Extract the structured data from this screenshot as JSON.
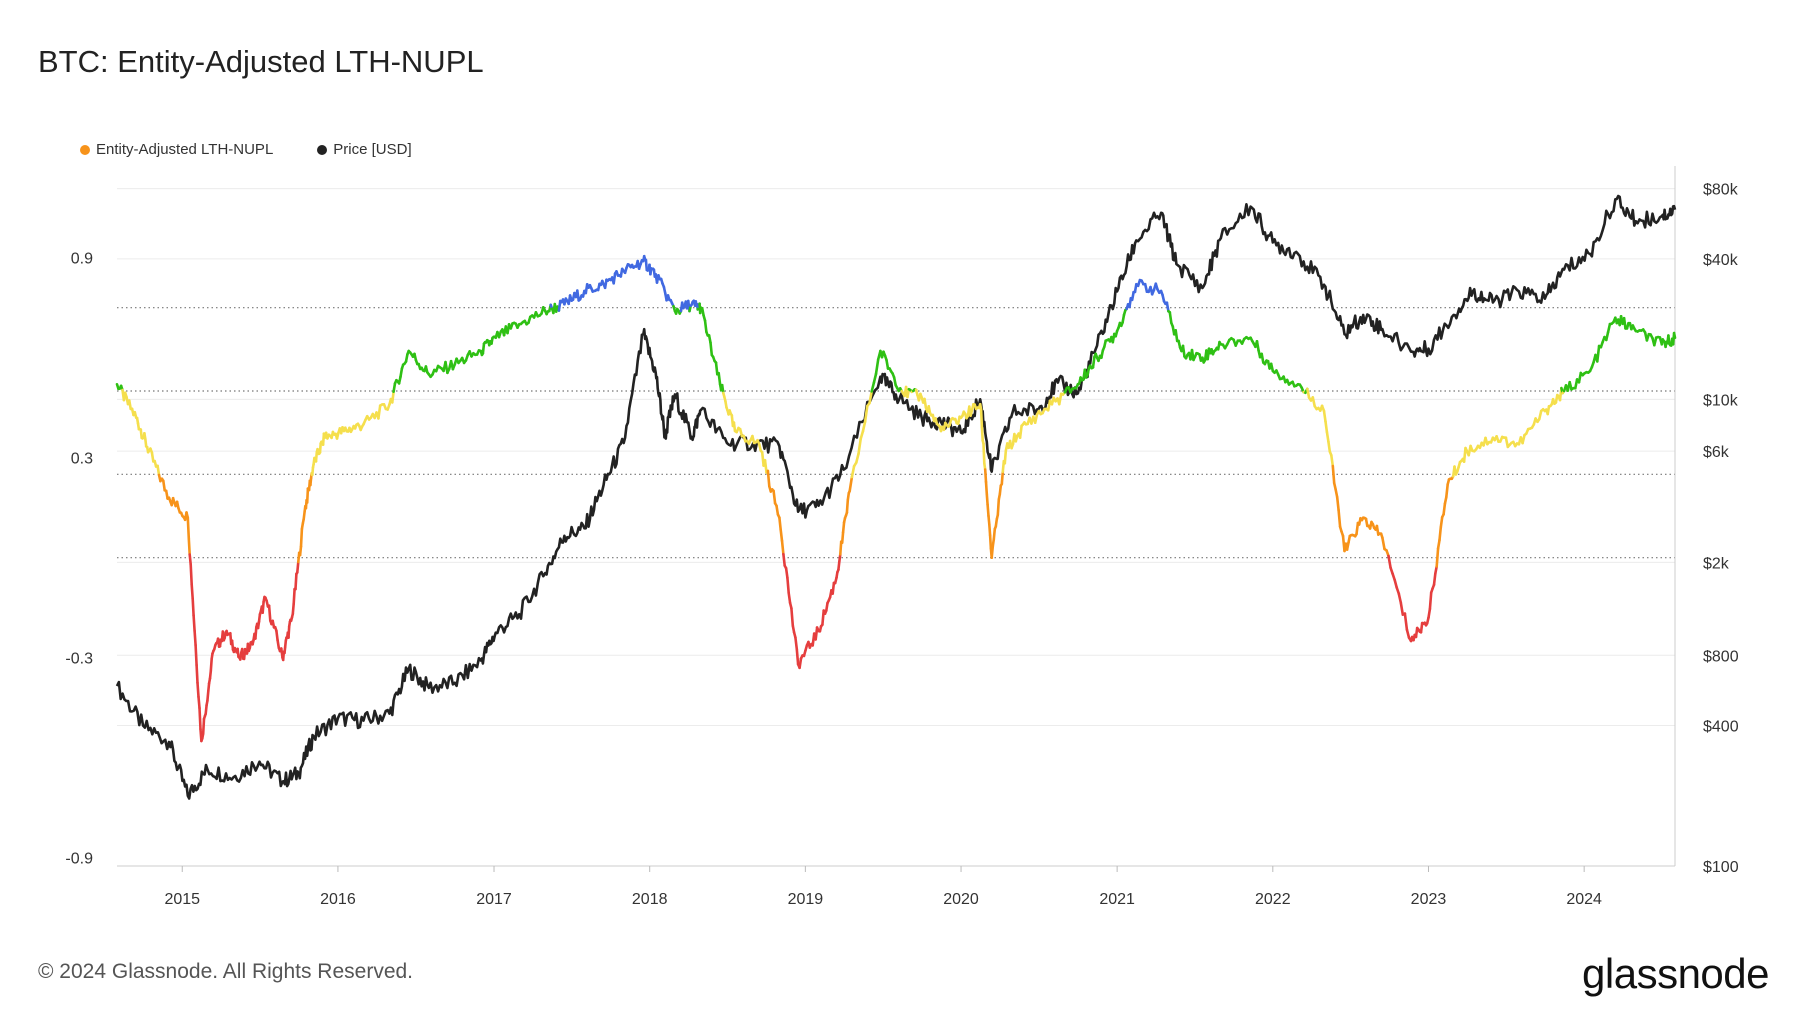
{
  "title": "BTC: Entity-Adjusted LTH-NUPL",
  "footer": "© 2024 Glassnode. All Rights Reserved.",
  "brand": "glassnode",
  "legend": [
    {
      "label": "Entity-Adjusted LTH-NUPL",
      "color": "#f7931a"
    },
    {
      "label": "Price [USD]",
      "color": "#222222"
    }
  ],
  "chart_data": {
    "type": "line",
    "x_range": [
      "2014-08-01",
      "2024-08-01"
    ],
    "x_ticks": [
      "2015",
      "2016",
      "2017",
      "2018",
      "2019",
      "2020",
      "2021",
      "2022",
      "2023",
      "2024"
    ],
    "y_left": {
      "ticks": [
        {
          "value": 0.9,
          "label": "0.9"
        },
        {
          "value": 0.3,
          "label": "0.3"
        },
        {
          "value": -0.3,
          "label": "-0.3"
        },
        {
          "value": -0.9,
          "label": "-0.9"
        }
      ],
      "range": [
        -0.925,
        1.175
      ]
    },
    "y_right": {
      "scale": "log",
      "range": [
        100,
        100000
      ],
      "ticks": [
        {
          "value": 80000,
          "label": "$80k"
        },
        {
          "value": 40000,
          "label": "$40k"
        },
        {
          "value": 10000,
          "label": "$10k"
        },
        {
          "value": 6000,
          "label": "$6k"
        },
        {
          "value": 2000,
          "label": "$2k"
        },
        {
          "value": 800,
          "label": "$800"
        },
        {
          "value": 400,
          "label": "$400"
        },
        {
          "value": 100,
          "label": "$100"
        }
      ]
    },
    "thresholds": [
      0.75,
      0.5,
      0.25,
      0.0
    ],
    "zone_colors": {
      "capitulation": "#e53e3e",
      "hope_fear": "#f7931a",
      "optimism_anxiety": "#f5df4d",
      "belief_denial": "#2fc014",
      "euphoria_greed": "#4169e1"
    },
    "series": [
      {
        "name": "Entity-Adjusted LTH-NUPL",
        "x": [
          "2014-08-01",
          "2014-09-15",
          "2014-10-15",
          "2014-12-01",
          "2015-01-14",
          "2015-02-15",
          "2015-03-15",
          "2015-04-15",
          "2015-05-15",
          "2015-06-15",
          "2015-07-15",
          "2015-08-24",
          "2015-09-15",
          "2015-10-15",
          "2015-11-05",
          "2015-12-01",
          "2016-01-15",
          "2016-03-01",
          "2016-05-01",
          "2016-06-15",
          "2016-08-01",
          "2016-10-01",
          "2016-12-01",
          "2017-01-05",
          "2017-03-01",
          "2017-05-01",
          "2017-06-15",
          "2017-08-01",
          "2017-09-15",
          "2017-11-01",
          "2017-12-17",
          "2018-01-15",
          "2018-03-01",
          "2018-04-10",
          "2018-05-01",
          "2018-06-15",
          "2018-07-20",
          "2018-09-15",
          "2018-11-01",
          "2018-12-15",
          "2019-02-01",
          "2019-03-15",
          "2019-04-15",
          "2019-06-26",
          "2019-08-15",
          "2019-10-01",
          "2019-11-15",
          "2020-01-01",
          "2020-02-15",
          "2020-03-13",
          "2020-04-15",
          "2020-06-01",
          "2020-08-01",
          "2020-10-01",
          "2020-11-15",
          "2021-01-01",
          "2021-02-15",
          "2021-04-14",
          "2021-06-01",
          "2021-07-20",
          "2021-09-01",
          "2021-11-10",
          "2022-01-01",
          "2022-03-01",
          "2022-05-01",
          "2022-06-18",
          "2022-08-01",
          "2022-09-15",
          "2022-11-21",
          "2023-01-01",
          "2023-02-15",
          "2023-04-01",
          "2023-06-01",
          "2023-08-01",
          "2023-10-01",
          "2023-11-15",
          "2024-01-15",
          "2024-03-14",
          "2024-05-01",
          "2024-07-01",
          "2024-08-01"
        ],
        "values": [
          0.52,
          0.42,
          0.32,
          0.18,
          0.12,
          -0.55,
          -0.28,
          -0.22,
          -0.3,
          -0.26,
          -0.12,
          -0.3,
          -0.18,
          0.14,
          0.28,
          0.36,
          0.38,
          0.4,
          0.46,
          0.62,
          0.55,
          0.58,
          0.62,
          0.66,
          0.7,
          0.74,
          0.76,
          0.8,
          0.82,
          0.86,
          0.89,
          0.85,
          0.74,
          0.76,
          0.75,
          0.52,
          0.38,
          0.34,
          0.12,
          -0.32,
          -0.22,
          -0.06,
          0.2,
          0.62,
          0.5,
          0.48,
          0.38,
          0.42,
          0.46,
          0.0,
          0.32,
          0.4,
          0.46,
          0.52,
          0.6,
          0.68,
          0.82,
          0.8,
          0.62,
          0.6,
          0.64,
          0.66,
          0.56,
          0.52,
          0.44,
          0.02,
          0.12,
          0.06,
          -0.25,
          -0.18,
          0.22,
          0.32,
          0.36,
          0.34,
          0.44,
          0.5,
          0.56,
          0.72,
          0.68,
          0.64,
          0.66
        ]
      },
      {
        "name": "Price [USD]",
        "x": [
          "2014-08-01",
          "2014-10-01",
          "2014-12-01",
          "2015-01-14",
          "2015-03-01",
          "2015-05-01",
          "2015-07-01",
          "2015-08-24",
          "2015-10-01",
          "2015-11-05",
          "2016-01-01",
          "2016-03-01",
          "2016-05-01",
          "2016-06-15",
          "2016-08-01",
          "2016-10-01",
          "2016-12-01",
          "2017-01-05",
          "2017-03-01",
          "2017-05-01",
          "2017-06-15",
          "2017-08-01",
          "2017-09-15",
          "2017-11-01",
          "2017-12-17",
          "2018-01-15",
          "2018-02-06",
          "2018-03-01",
          "2018-04-10",
          "2018-05-01",
          "2018-07-01",
          "2018-09-01",
          "2018-11-01",
          "2018-12-15",
          "2019-02-01",
          "2019-04-01",
          "2019-06-26",
          "2019-08-01",
          "2019-10-01",
          "2019-11-15",
          "2020-01-01",
          "2020-02-15",
          "2020-03-13",
          "2020-05-01",
          "2020-07-01",
          "2020-08-15",
          "2020-10-01",
          "2020-11-15",
          "2021-01-01",
          "2021-02-15",
          "2021-04-14",
          "2021-05-20",
          "2021-07-20",
          "2021-09-01",
          "2021-11-10",
          "2022-01-01",
          "2022-03-01",
          "2022-05-01",
          "2022-06-18",
          "2022-08-01",
          "2022-09-15",
          "2022-11-21",
          "2023-01-01",
          "2023-03-01",
          "2023-04-15",
          "2023-06-01",
          "2023-08-01",
          "2023-10-01",
          "2023-11-15",
          "2024-01-15",
          "2024-03-14",
          "2024-05-01",
          "2024-07-01",
          "2024-08-01"
        ],
        "values": [
          590,
          400,
          340,
          200,
          260,
          240,
          280,
          230,
          250,
          360,
          430,
          420,
          450,
          700,
          580,
          610,
          760,
          1000,
          1200,
          1800,
          2600,
          2800,
          4300,
          6500,
          19000,
          13000,
          7000,
          10500,
          6900,
          9000,
          6500,
          6500,
          6300,
          3300,
          3500,
          5000,
          12500,
          10500,
          8300,
          8000,
          7200,
          10000,
          4900,
          8800,
          9100,
          11800,
          10600,
          17000,
          29000,
          48000,
          63000,
          38000,
          30000,
          49000,
          67000,
          47000,
          42000,
          31000,
          19000,
          23000,
          20000,
          16000,
          16500,
          23000,
          29000,
          26000,
          29000,
          27000,
          36000,
          42000,
          72000,
          58000,
          61000,
          65000
        ]
      }
    ]
  }
}
